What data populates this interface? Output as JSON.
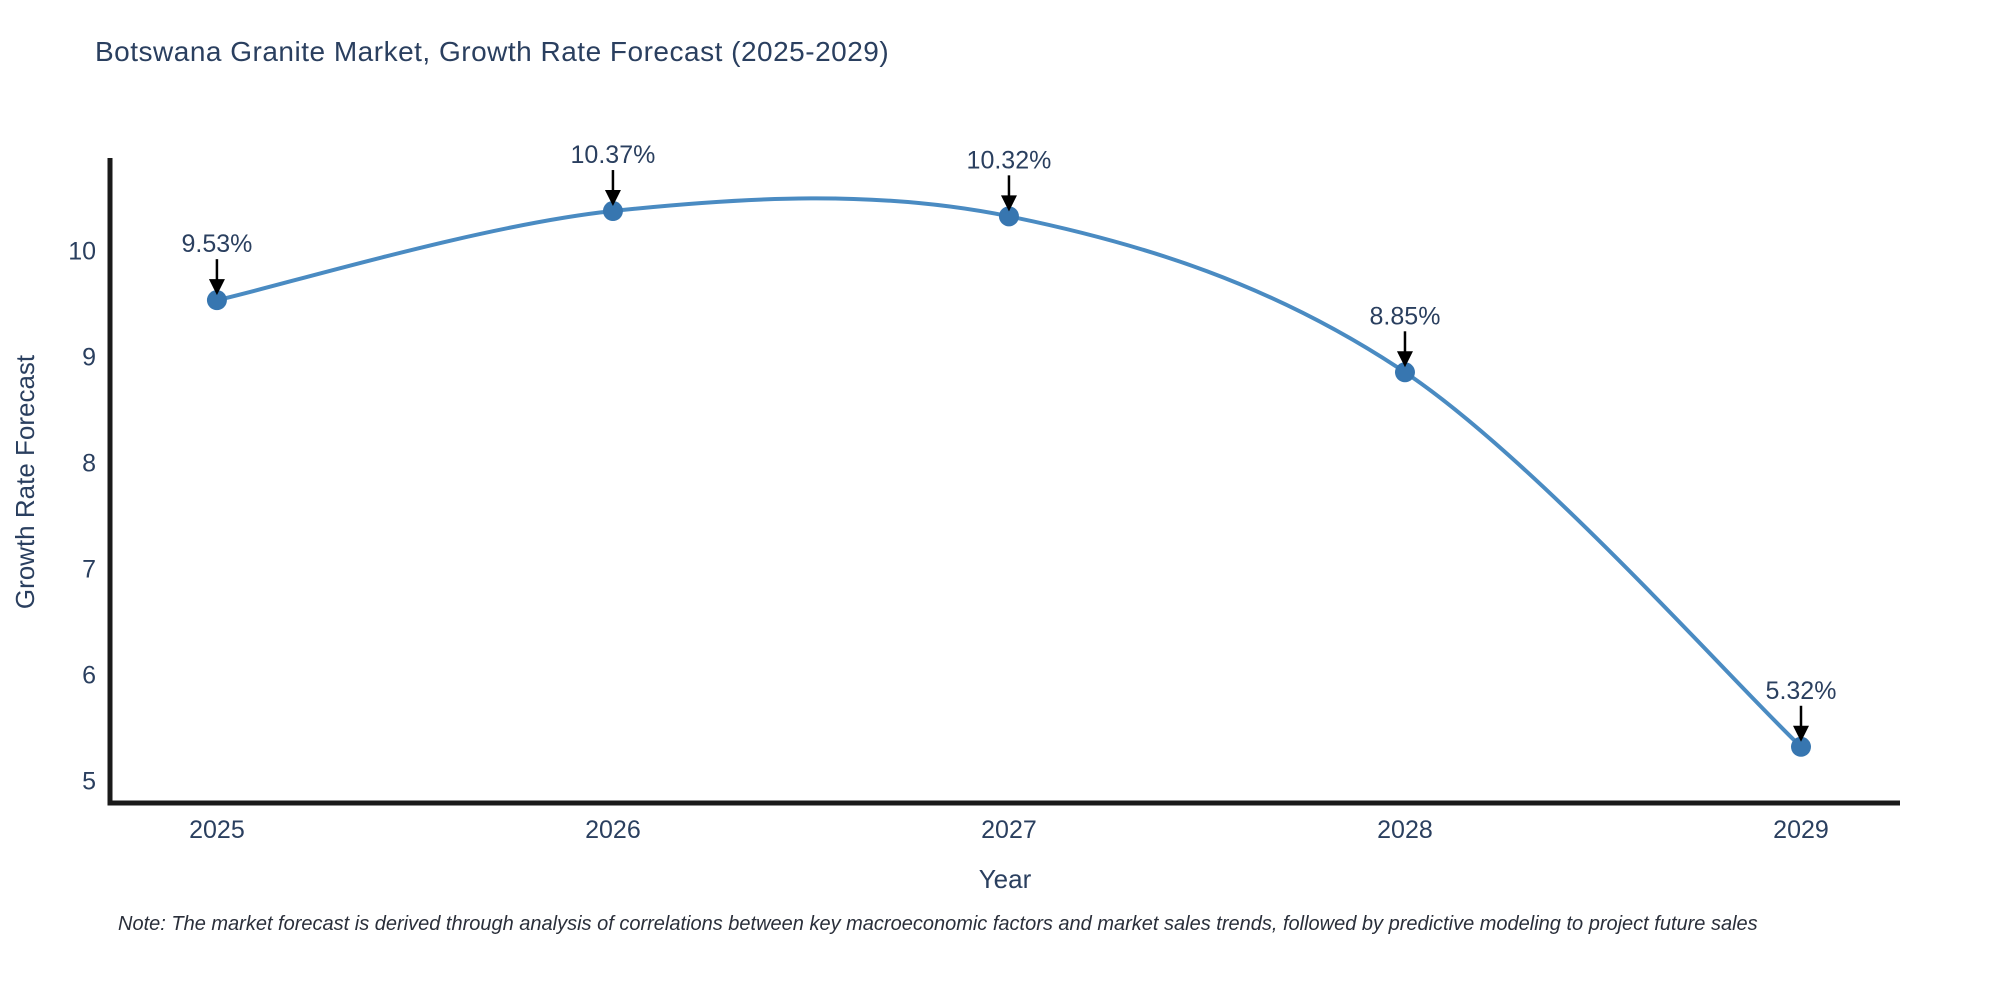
{
  "chart_data": {
    "type": "line",
    "title": "Botswana Granite Market, Growth Rate Forecast (2025-2029)",
    "xlabel": "Year",
    "ylabel": "Growth Rate Forecast",
    "x": [
      2025,
      2026,
      2027,
      2028,
      2029
    ],
    "values": [
      9.53,
      10.37,
      10.32,
      8.85,
      5.32
    ],
    "point_labels": [
      "9.53%",
      "10.37%",
      "10.32%",
      "8.85%",
      "5.32%"
    ],
    "x_tick_labels": [
      "2025",
      "2026",
      "2027",
      "2028",
      "2029"
    ],
    "y_ticks": [
      5,
      6,
      7,
      8,
      9,
      10
    ],
    "ylim": [
      4.79,
      10.87
    ],
    "xlim": [
      2024.73,
      2029.25
    ],
    "line_shape": "spline",
    "grid": false,
    "legend": "none",
    "annotation_style": "value-label-with-down-arrow",
    "colors": {
      "line": "#4a8bc2",
      "marker": "#3776b0",
      "arrow": "#000000",
      "text": "#2a3f5f",
      "axis": "#1a1a1a",
      "background": "#ffffff"
    },
    "note": "Note: The market forecast is derived through analysis of correlations between key macroeconomic factors and market sales trends, followed by predictive modeling to project future sales"
  }
}
